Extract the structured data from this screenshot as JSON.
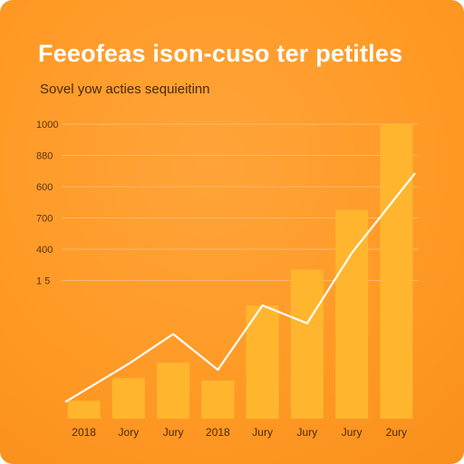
{
  "chart_data": {
    "type": "bar",
    "title": "Feeofeas ison-cuso ter petitles",
    "subtitle": "Sovel yow acties sequieitinn",
    "categories": [
      "2018",
      "Jory",
      "Jury",
      "2018",
      "Jury",
      "Jury",
      "Jury",
      "2ury"
    ],
    "y_tick_labels": [
      "1000",
      "880",
      "600",
      "700",
      "400",
      "1 5"
    ],
    "values": [
      15,
      34,
      47,
      32,
      95,
      125,
      175,
      247
    ],
    "line_values": [
      14,
      46,
      71,
      41,
      95,
      80,
      139,
      206
    ],
    "ylim": [
      0,
      260
    ],
    "grid": true,
    "colors": {
      "background": "#ff9a26",
      "bar": "#ffb62e",
      "line": "#ffffff",
      "grid": "#f7b870"
    }
  }
}
